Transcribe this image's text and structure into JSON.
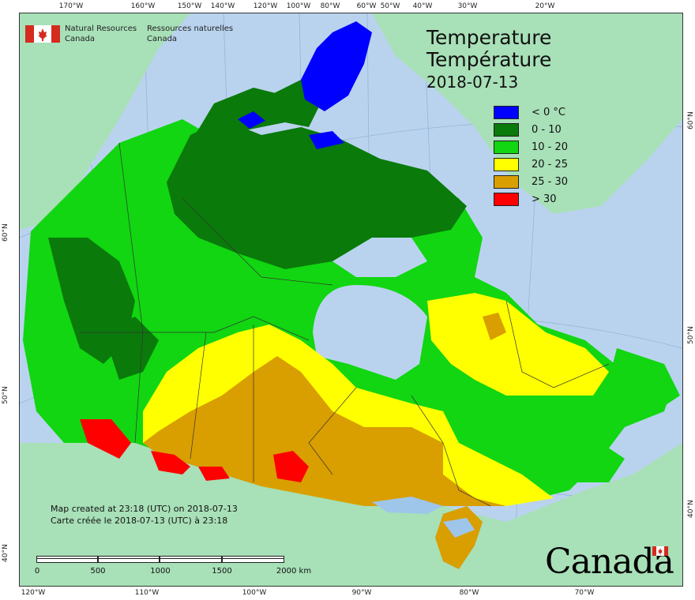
{
  "title": {
    "line_en": "Temperature",
    "line_fr": "Température",
    "date": "2018-07-13"
  },
  "agency": {
    "en_line1": "Natural Resources",
    "en_line2": "Canada",
    "fr_line1": "Ressources naturelles",
    "fr_line2": "Canada"
  },
  "legend": [
    {
      "label": "< 0 °C",
      "color": "#0000ff"
    },
    {
      "label": "0 - 10",
      "color": "#0a7a0a"
    },
    {
      "label": "10 - 20",
      "color": "#11d611"
    },
    {
      "label": "20 - 25",
      "color": "#ffff00"
    },
    {
      "label": "25 - 30",
      "color": "#d99e00"
    },
    {
      "label": "> 30",
      "color": "#ff0000"
    }
  ],
  "created": {
    "en": "Map created at 23:18 (UTC) on 2018-07-13",
    "fr": "Carte créée le 2018-07-13 (UTC) à 23:18"
  },
  "scale": {
    "ticks": [
      "0",
      "500",
      "1000",
      "1500",
      "2000 km"
    ]
  },
  "wordmark": "Canada",
  "graticule": {
    "top": [
      "170°W",
      "160°W",
      "150°W",
      "140°W",
      "120°W",
      "100°W",
      "80°W",
      "60°W",
      "50°W",
      "40°W",
      "30°W",
      "20°W"
    ],
    "bottom": [
      "120°W",
      "110°W",
      "100°W",
      "90°W",
      "80°W",
      "70°W"
    ],
    "left": [
      "60°N",
      "50°N",
      "40°N"
    ],
    "right": [
      "60°N",
      "50°N",
      "40°N"
    ]
  },
  "colors": {
    "water": "#b9d3ee",
    "land_other": "#a8e0b8",
    "lakes": "#9ec6ea"
  }
}
